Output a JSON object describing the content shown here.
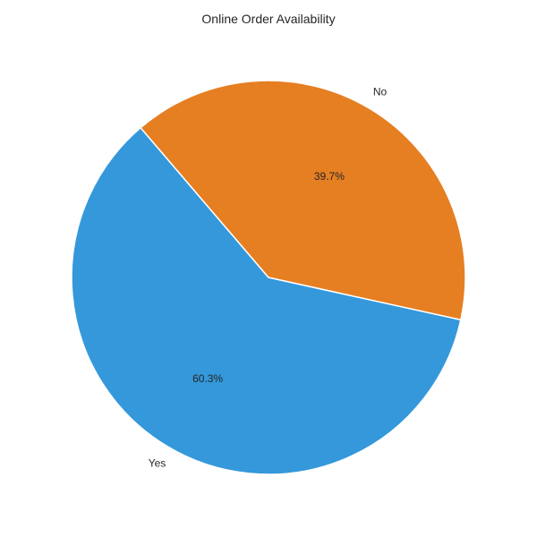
{
  "chart_data": {
    "type": "pie",
    "title": "Online Order Availability",
    "categories": [
      "Yes",
      "No"
    ],
    "values": [
      60.3,
      39.7
    ],
    "labels": [
      "60.3%",
      "39.7%"
    ],
    "colors": [
      "#3498db",
      "#e67e22"
    ]
  }
}
